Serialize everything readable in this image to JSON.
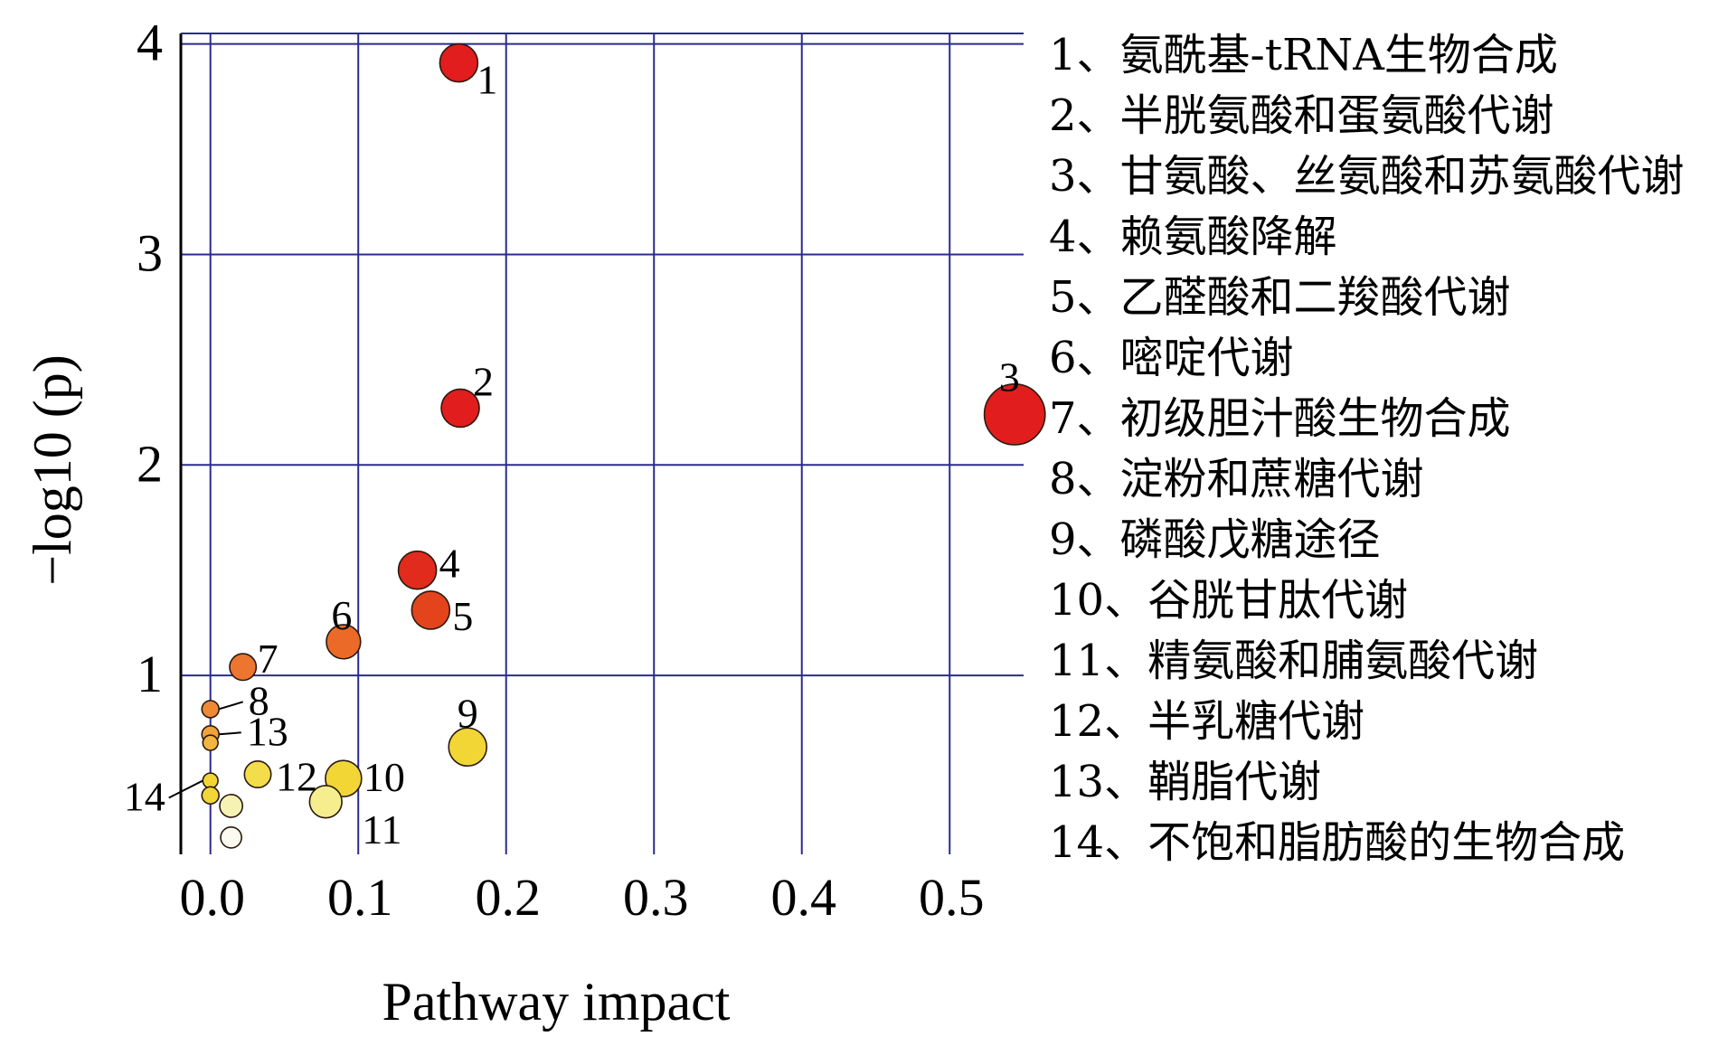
{
  "chart_data": {
    "type": "scatter",
    "title": "",
    "xlabel": "Pathway impact",
    "ylabel": "−log10 (p)",
    "xlim": [
      -0.02,
      0.55
    ],
    "ylim": [
      0.15,
      4.05
    ],
    "xticks": [
      0.0,
      0.1,
      0.2,
      0.3,
      0.4,
      0.5
    ],
    "xtick_labels": [
      "0.0",
      "0.1",
      "0.2",
      "0.3",
      "0.4",
      "0.5"
    ],
    "yticks": [
      1,
      2,
      3,
      4
    ],
    "ytick_labels": [
      "1",
      "2",
      "3",
      "4"
    ],
    "grid": true,
    "legend_position": "right",
    "colors": {
      "grid": "#2b2b8f",
      "red": "#e21d1d",
      "orange_red": "#e3441c",
      "orange": "#ec7630",
      "yellow": "#f2d636",
      "pale": "#f6f2b4",
      "white": "#fafaf0"
    },
    "points": [
      {
        "label": "1",
        "x": 0.168,
        "y": 3.91,
        "size": 1.0,
        "color": "#e21d1d"
      },
      {
        "label": "2",
        "x": 0.169,
        "y": 2.27,
        "size": 1.0,
        "color": "#e21d1d"
      },
      {
        "label": "3",
        "x": 0.544,
        "y": 2.24,
        "size": 1.6,
        "color": "#e21d1d"
      },
      {
        "label": "4",
        "x": 0.14,
        "y": 1.5,
        "size": 1.0,
        "color": "#e12b1c"
      },
      {
        "label": "5",
        "x": 0.149,
        "y": 1.31,
        "size": 1.0,
        "color": "#e3441c"
      },
      {
        "label": "6",
        "x": 0.09,
        "y": 1.16,
        "size": 0.9,
        "color": "#ec6a28"
      },
      {
        "label": "7",
        "x": 0.022,
        "y": 1.04,
        "size": 0.7,
        "color": "#ec7630"
      },
      {
        "label": "8",
        "x": 0.0,
        "y": 0.84,
        "size": 0.45,
        "color": "#ee8a34"
      },
      {
        "label": "9",
        "x": 0.174,
        "y": 0.66,
        "size": 1.0,
        "color": "#f2d636"
      },
      {
        "label": "10",
        "x": 0.09,
        "y": 0.51,
        "size": 0.95,
        "color": "#f2d636"
      },
      {
        "label": "11",
        "x": 0.078,
        "y": 0.4,
        "size": 0.85,
        "color": "#f6ee8e"
      },
      {
        "label": "12",
        "x": 0.032,
        "y": 0.53,
        "size": 0.7,
        "color": "#f4dd4a"
      },
      {
        "label": "13",
        "x": 0.0,
        "y": 0.72,
        "size": 0.45,
        "color": "#f0a23a"
      },
      {
        "label": "14",
        "x": 0.0,
        "y": 0.5,
        "size": 0.4,
        "color": "#f2d636"
      },
      {
        "label": "",
        "x": 0.0,
        "y": 0.68,
        "size": 0.4,
        "color": "#f1b640"
      },
      {
        "label": "",
        "x": 0.0,
        "y": 0.43,
        "size": 0.45,
        "color": "#f2d636"
      },
      {
        "label": "",
        "x": 0.014,
        "y": 0.38,
        "size": 0.6,
        "color": "#f6f2b4"
      },
      {
        "label": "",
        "x": 0.014,
        "y": 0.23,
        "size": 0.55,
        "color": "#fafaf0"
      }
    ],
    "legend_entries": [
      "1、氨酰基-tRNA生物合成",
      "2、半胱氨酸和蛋氨酸代谢",
      "3、甘氨酸、丝氨酸和苏氨酸代谢",
      "4、赖氨酸降解",
      "5、乙醛酸和二羧酸代谢",
      "6、嘧啶代谢",
      "7、初级胆汁酸生物合成",
      "8、淀粉和蔗糖代谢",
      "9、磷酸戊糖途径",
      "10、谷胱甘肽代谢",
      "11、精氨酸和脯氨酸代谢",
      "12、半乳糖代谢",
      "13、鞘脂代谢",
      "14、不饱和脂肪酸的生物合成"
    ]
  }
}
